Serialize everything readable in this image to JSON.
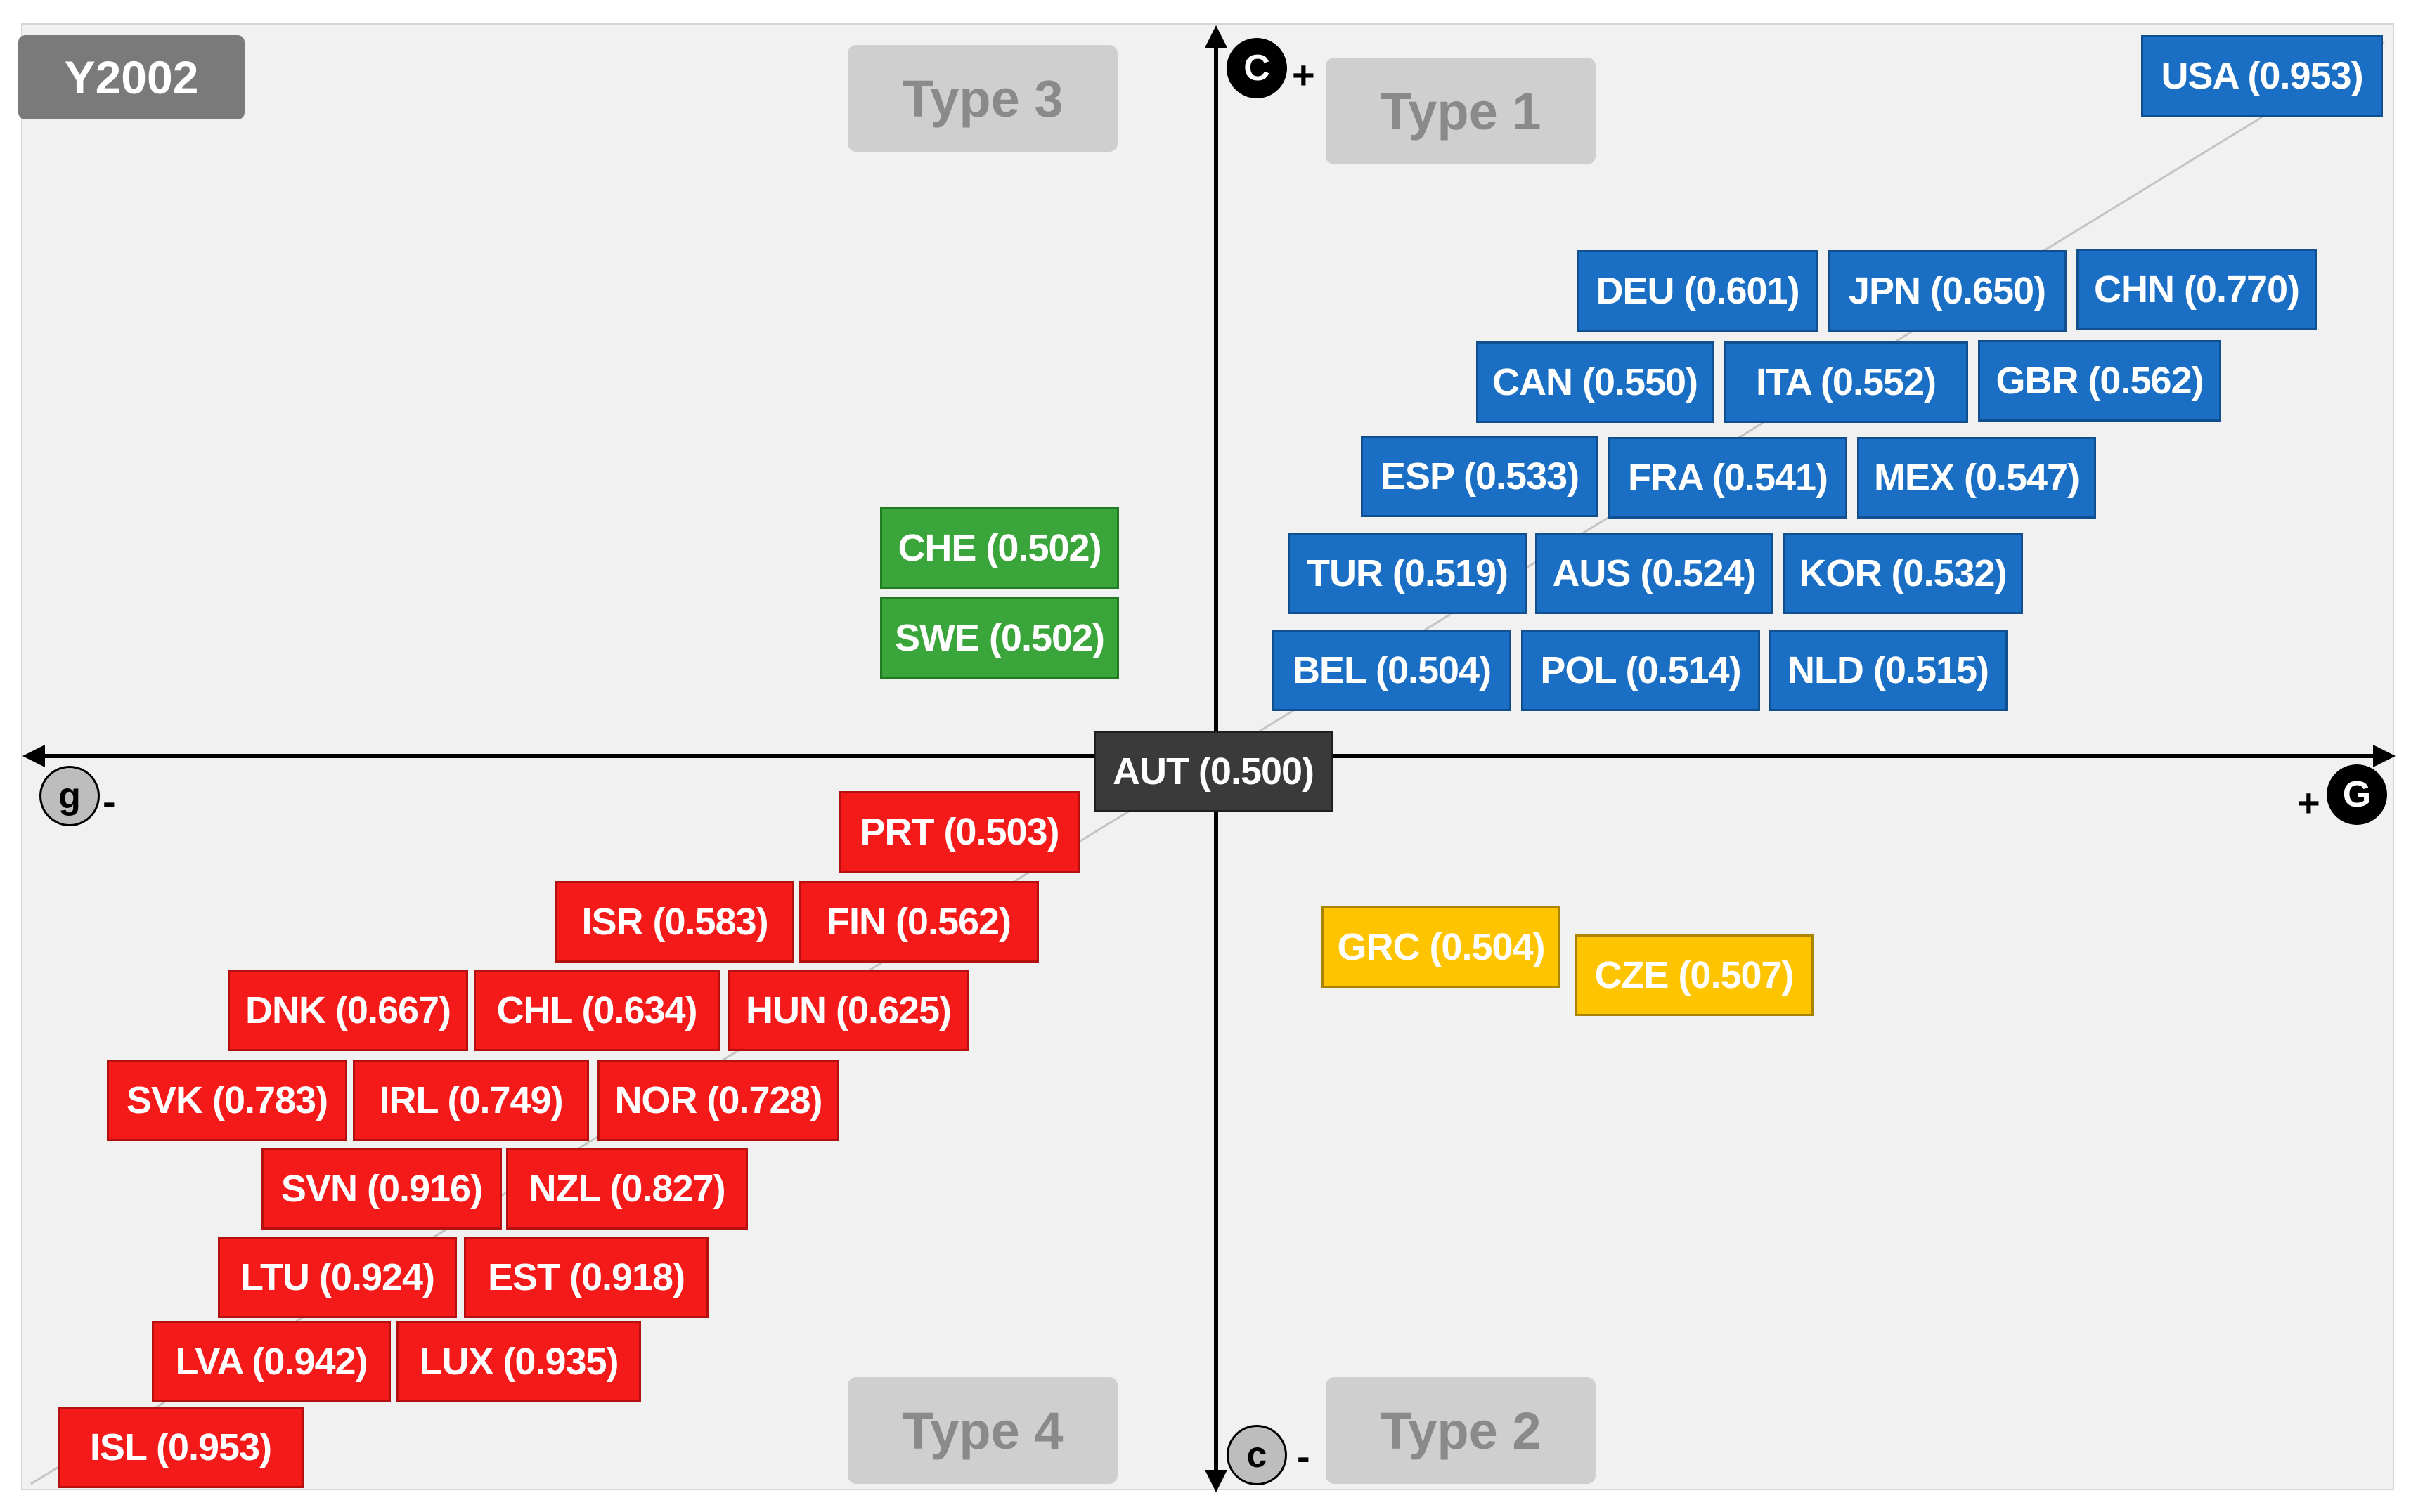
{
  "year_label": "Y2002",
  "type_labels": {
    "type1": "Type 1",
    "type2": "Type 2",
    "type3": "Type 3",
    "type4": "Type 4"
  },
  "axis_badges": {
    "C_upper": "C",
    "c_lower": "c",
    "G_right": "G",
    "g_left": "g"
  },
  "axis_signs": {
    "C_sign": "+",
    "c_sign": "-",
    "G_sign": "+",
    "g_sign": "-"
  },
  "center": "AUT (0.500)",
  "type1_countries": {
    "usa": "USA (0.953)",
    "deu": "DEU (0.601)",
    "jpn": "JPN (0.650)",
    "chn": "CHN (0.770)",
    "can": "CAN (0.550)",
    "ita": "ITA (0.552)",
    "gbr": "GBR (0.562)",
    "esp": "ESP (0.533)",
    "fra": "FRA (0.541)",
    "mex": "MEX (0.547)",
    "tur": "TUR (0.519)",
    "aus": "AUS (0.524)",
    "kor": "KOR (0.532)",
    "bel": "BEL (0.504)",
    "pol": "POL (0.514)",
    "nld": "NLD (0.515)"
  },
  "type3_countries": {
    "che": "CHE (0.502)",
    "swe": "SWE (0.502)"
  },
  "type2_countries": {
    "grc": "GRC (0.504)",
    "cze": "CZE (0.507)"
  },
  "type4_countries": {
    "prt": "PRT (0.503)",
    "isr": "ISR (0.583)",
    "fin": "FIN (0.562)",
    "dnk": "DNK (0.667)",
    "chl": "CHL (0.634)",
    "hun": "HUN (0.625)",
    "svk": "SVK (0.783)",
    "irl": "IRL (0.749)",
    "nor": "NOR (0.728)",
    "svn": "SVN (0.916)",
    "nzl": "NZL (0.827)",
    "ltu": "LTU (0.924)",
    "est": "EST (0.918)",
    "lva": "LVA (0.942)",
    "lux": "LUX (0.935)",
    "isl": "ISL (0.953)"
  },
  "colors": {
    "type1": "#1a6fc4",
    "type2": "#ffc400",
    "type3": "#3aa53a",
    "type4": "#f41a1a",
    "center": "#3a3a3a"
  }
}
